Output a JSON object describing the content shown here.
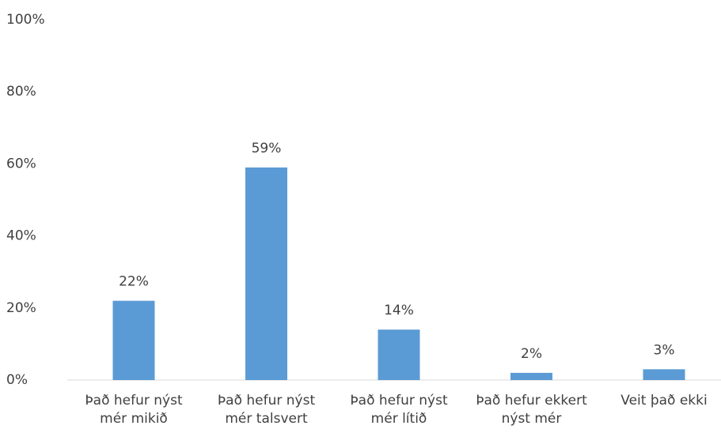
{
  "chart_data": {
    "type": "bar",
    "categories": [
      "Það hefur nýst mér mikið",
      "Það hefur nýst mér talsvert",
      "Það hefur nýst mér lítið",
      "Það hefur ekkert nýst mér",
      "Veit það ekki"
    ],
    "values": [
      22,
      59,
      14,
      2,
      3
    ],
    "value_labels": [
      "22%",
      "59%",
      "14%",
      "2%",
      "3%"
    ],
    "color": "#5b9bd5",
    "ylim": [
      0,
      100
    ],
    "yticks": [
      {
        "value": 0,
        "label": "0%"
      },
      {
        "value": 20,
        "label": "20%"
      },
      {
        "value": 40,
        "label": "40%"
      },
      {
        "value": 60,
        "label": "60%"
      },
      {
        "value": 80,
        "label": "80%"
      },
      {
        "value": 100,
        "label": "100%"
      }
    ],
    "grid": false
  }
}
